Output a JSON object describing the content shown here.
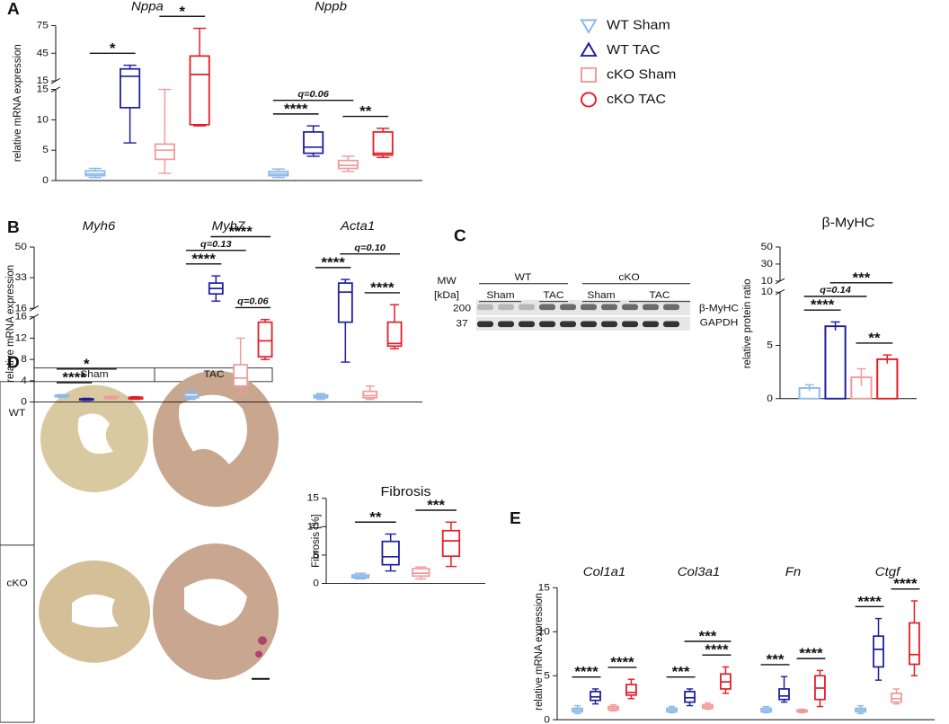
{
  "legend": {
    "series": [
      {
        "name": "WT Sham",
        "color": "#8cb8ea",
        "marker": "triangle-down"
      },
      {
        "name": "WT TAC",
        "color": "#1f1fa0",
        "marker": "triangle-up"
      },
      {
        "name": "cKO Sham",
        "color": "#f29a9a",
        "marker": "square"
      },
      {
        "name": "cKO TAC",
        "color": "#e41e26",
        "marker": "circle"
      }
    ]
  },
  "chart_data": [
    {
      "type": "box",
      "panel": "A",
      "ylabel": "relative mRNA expression",
      "groups": [
        "Nppa",
        "Nppb"
      ],
      "axes": [
        {
          "ylim": [
            0,
            15
          ],
          "yticks": [
            0,
            5,
            10,
            15
          ]
        },
        {
          "ylim": [
            15,
            75
          ],
          "yticks": [
            15,
            45,
            75
          ]
        }
      ],
      "boxes": [
        [
          [
            0.5,
            0.8,
            1.1,
            1.6,
            2
          ],
          [
            6.2,
            12,
            20,
            28,
            32
          ],
          [
            1.2,
            3.5,
            5,
            6,
            15
          ],
          [
            9,
            9.2,
            22,
            42,
            72
          ]
        ],
        [
          [
            0.5,
            0.8,
            1.1,
            1.5,
            1.9
          ],
          [
            4,
            4.5,
            5.5,
            8,
            9
          ],
          [
            1.5,
            2,
            2.5,
            3.3,
            4
          ],
          [
            3.8,
            4.2,
            4.5,
            8,
            8.6
          ]
        ]
      ],
      "brackets": [
        {
          "label": "*",
          "from": [
            0,
            0
          ],
          "to": [
            0,
            1
          ]
        },
        {
          "label": "*",
          "from": [
            0,
            2
          ],
          "to": [
            0,
            3
          ]
        },
        {
          "label": "****",
          "from": [
            1,
            0
          ],
          "to": [
            1,
            1
          ]
        },
        {
          "label": "**",
          "from": [
            1,
            2
          ],
          "to": [
            1,
            3
          ]
        },
        {
          "label": "q=0.06",
          "from": [
            1,
            0
          ],
          "to": [
            1,
            2
          ]
        }
      ]
    },
    {
      "type": "box",
      "panel": "B",
      "ylabel": "relative mRNA expression",
      "groups": [
        "Myh6",
        "Myh7",
        "Acta1"
      ],
      "axes": [
        {
          "ylim": [
            0,
            16
          ],
          "yticks": [
            0,
            4,
            8,
            12,
            16
          ]
        },
        {
          "ylim": [
            16,
            50
          ],
          "yticks": [
            16,
            33,
            50
          ]
        }
      ],
      "boxes": [
        [
          [
            0.9,
            1,
            1.1,
            1.3,
            1.4
          ],
          [
            0.3,
            0.4,
            0.5,
            0.6,
            0.7
          ],
          [
            0.6,
            0.7,
            0.8,
            1,
            1.1
          ],
          [
            0.5,
            0.6,
            0.7,
            0.9,
            1
          ]
        ],
        [
          [
            0.5,
            0.8,
            1.1,
            1.6,
            2.5
          ],
          [
            20,
            24,
            27,
            30,
            34
          ],
          [
            1.5,
            3,
            4.5,
            7,
            12
          ],
          [
            8,
            8.5,
            11.5,
            15,
            15.5
          ]
        ],
        [
          [
            0.5,
            0.8,
            1,
            1.3,
            1.6
          ],
          [
            7.5,
            15,
            25,
            30,
            32
          ],
          [
            0.5,
            0.8,
            1.2,
            2,
            3
          ],
          [
            10,
            10.5,
            11,
            15,
            18
          ]
        ]
      ],
      "brackets": [
        {
          "label": "****",
          "from": [
            0,
            0
          ],
          "to": [
            0,
            1
          ]
        },
        {
          "label": "*",
          "from": [
            0,
            0
          ],
          "to": [
            0,
            2
          ]
        },
        {
          "label": "****",
          "from": [
            1,
            0
          ],
          "to": [
            1,
            1
          ]
        },
        {
          "label": "q=0.13",
          "from": [
            1,
            0
          ],
          "to": [
            1,
            2
          ]
        },
        {
          "label": "****",
          "from": [
            1,
            1
          ],
          "to": [
            1,
            3
          ]
        },
        {
          "label": "q=0.06",
          "from": [
            1,
            2
          ],
          "to": [
            1,
            3
          ]
        },
        {
          "label": "****",
          "from": [
            2,
            0
          ],
          "to": [
            2,
            1
          ]
        },
        {
          "label": "q=0.10",
          "from": [
            2,
            1
          ],
          "to": [
            2,
            3
          ]
        },
        {
          "label": "****",
          "from": [
            2,
            2
          ],
          "to": [
            2,
            3
          ]
        }
      ]
    },
    {
      "type": "bar",
      "panel": "C",
      "title": "β-MyHC",
      "ylabel": "relative protein ratio",
      "axes": [
        {
          "ylim": [
            0,
            10
          ],
          "yticks": [
            0,
            5,
            10
          ]
        },
        {
          "ylim": [
            10,
            50
          ],
          "yticks": [
            10,
            30,
            50
          ]
        }
      ],
      "values": [
        1.0,
        6.8,
        2.0,
        3.7
      ],
      "errors": [
        0.3,
        0.4,
        0.8,
        0.4
      ],
      "brackets": [
        {
          "label": "****",
          "from": [
            0,
            0
          ],
          "to": [
            0,
            1
          ]
        },
        {
          "label": "q=0.14",
          "from": [
            0,
            0
          ],
          "to": [
            0,
            2
          ]
        },
        {
          "label": "***",
          "from": [
            0,
            1
          ],
          "to": [
            0,
            3
          ]
        },
        {
          "label": "**",
          "from": [
            0,
            2
          ],
          "to": [
            0,
            3
          ]
        }
      ]
    },
    {
      "type": "box",
      "panel": "D",
      "title": "Fibrosis",
      "ylabel": "Fibrosis [%]",
      "axes": [
        {
          "ylim": [
            0,
            15
          ],
          "yticks": [
            0,
            5,
            10,
            15
          ]
        }
      ],
      "boxes": [
        [
          [
            0.8,
            1,
            1.2,
            1.5,
            1.8
          ],
          [
            2.2,
            3.3,
            4.7,
            7.4,
            8.7
          ],
          [
            0.8,
            1.3,
            1.8,
            2.6,
            2.9
          ],
          [
            3,
            4.8,
            7.5,
            9.3,
            10.8
          ]
        ]
      ],
      "brackets": [
        {
          "label": "**",
          "from": [
            0,
            0
          ],
          "to": [
            0,
            1
          ]
        },
        {
          "label": "***",
          "from": [
            0,
            2
          ],
          "to": [
            0,
            3
          ]
        }
      ]
    },
    {
      "type": "box",
      "panel": "E",
      "ylabel": "relative mRNA expression",
      "groups": [
        "Col1a1",
        "Col3a1",
        "Fn",
        "Ctgf"
      ],
      "axes": [
        {
          "ylim": [
            0,
            15
          ],
          "yticks": [
            0,
            5,
            10,
            15
          ]
        }
      ],
      "boxes": [
        [
          [
            0.7,
            0.9,
            1.1,
            1.3,
            1.6
          ],
          [
            1.8,
            2.2,
            2.6,
            3.2,
            3.5
          ],
          [
            1,
            1.1,
            1.3,
            1.5,
            1.7
          ],
          [
            2.4,
            2.8,
            3.1,
            4,
            4.6
          ]
        ],
        [
          [
            0.8,
            0.9,
            1.1,
            1.3,
            1.5
          ],
          [
            1.6,
            2,
            2.5,
            3.2,
            3.5
          ],
          [
            1.2,
            1.3,
            1.5,
            1.7,
            1.9
          ],
          [
            3,
            3.5,
            4.3,
            5.2,
            6
          ]
        ],
        [
          [
            0.8,
            0.9,
            1.1,
            1.3,
            1.5
          ],
          [
            2,
            2.3,
            2.7,
            3.5,
            4.9
          ],
          [
            0.8,
            0.9,
            1,
            1.1,
            1.2
          ],
          [
            1.5,
            2.3,
            3.6,
            5,
            5.6
          ]
        ],
        [
          [
            0.7,
            0.9,
            1.1,
            1.3,
            1.6
          ],
          [
            4.5,
            6,
            8,
            9.5,
            11.5
          ],
          [
            1.8,
            2,
            2.4,
            3,
            3.5
          ],
          [
            5,
            6.3,
            7.4,
            11,
            13.5
          ]
        ]
      ],
      "brackets": [
        {
          "label": "****",
          "from": [
            0,
            0
          ],
          "to": [
            0,
            1
          ]
        },
        {
          "label": "****",
          "from": [
            0,
            2
          ],
          "to": [
            0,
            3
          ]
        },
        {
          "label": "***",
          "from": [
            1,
            0
          ],
          "to": [
            1,
            1
          ]
        },
        {
          "label": "****",
          "from": [
            1,
            2
          ],
          "to": [
            1,
            3
          ]
        },
        {
          "label": "***",
          "from": [
            1,
            1
          ],
          "to": [
            1,
            3
          ]
        },
        {
          "label": "***",
          "from": [
            2,
            0
          ],
          "to": [
            2,
            1
          ]
        },
        {
          "label": "****",
          "from": [
            2,
            2
          ],
          "to": [
            2,
            3
          ]
        },
        {
          "label": "****",
          "from": [
            3,
            0
          ],
          "to": [
            3,
            1
          ]
        },
        {
          "label": "****",
          "from": [
            3,
            2
          ],
          "to": [
            3,
            3
          ]
        }
      ]
    }
  ],
  "blot": {
    "mw": "MW",
    "unit": "[kDa]",
    "genotypes": [
      "WT",
      "cKO"
    ],
    "conditions": [
      "Sham",
      "TAC",
      "Sham",
      "TAC"
    ],
    "markers": [
      "200",
      "37"
    ],
    "proteins": [
      "β-MyHC",
      "GAPDH"
    ]
  },
  "histology": {
    "columns": [
      "Sham",
      "TAC"
    ],
    "rows": [
      "WT",
      "cKO"
    ]
  }
}
